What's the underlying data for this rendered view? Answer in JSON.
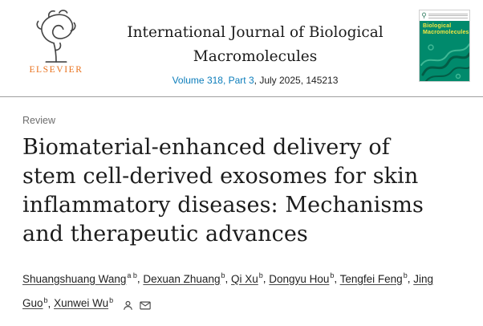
{
  "header": {
    "elsevier_wordmark": "ELSEVIER",
    "journal_title": "International Journal of Biological Macromolecules",
    "volume_link_text": "Volume 318, Part 3",
    "volume_suffix": ", July 2025, 145213",
    "cover": {
      "title_line1": "Biological",
      "title_line2": "Macromolecules"
    }
  },
  "article": {
    "kicker": "Review",
    "title": "Biomaterial-enhanced delivery of stem cell-derived exosomes for skin inflammatory diseases: Mechanisms and therapeutic advances",
    "authors": [
      {
        "name": "Shuangshuang Wang",
        "sup": "a b"
      },
      {
        "name": "Dexuan Zhuang",
        "sup": "b"
      },
      {
        "name": "Qi Xu",
        "sup": "b"
      },
      {
        "name": "Dongyu Hou",
        "sup": "b"
      },
      {
        "name": "Tengfei Feng",
        "sup": "b"
      },
      {
        "name": "Jing Guo",
        "sup": "b"
      },
      {
        "name": "Xunwei Wu",
        "sup": "b"
      }
    ],
    "author_icons": [
      "person-icon",
      "envelope-icon"
    ]
  },
  "colors": {
    "link_blue": "#0c7dbb",
    "elsevier_orange": "#e9711c",
    "cover_green": "#008a6c",
    "cover_yellow": "#f5e642",
    "text_dark": "#212121"
  }
}
